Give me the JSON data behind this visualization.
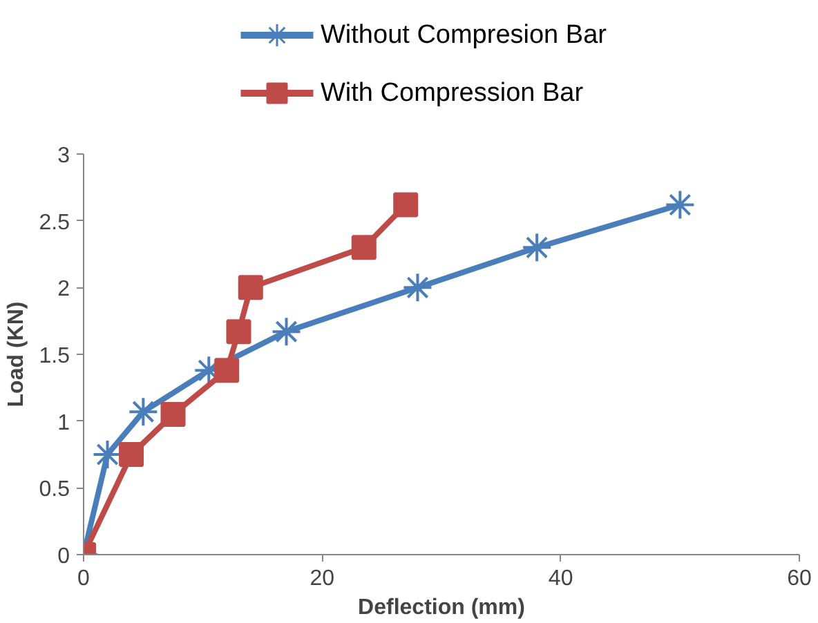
{
  "chart_data": {
    "type": "line",
    "xlabel": "Deflection (mm)",
    "ylabel": "Load (KN)",
    "xlim": [
      0,
      60
    ],
    "xticks": [
      0,
      20,
      40,
      60
    ],
    "ylim": [
      0,
      3
    ],
    "yticks": [
      0,
      0.5,
      1,
      1.5,
      2,
      2.5,
      3
    ],
    "grid": false,
    "legend": "top",
    "line_style": "solid",
    "series": [
      {
        "name": "Without Compresion Bar",
        "color": "#4a7ebb",
        "marker": "cross",
        "x": [
          0,
          2,
          5,
          10.5,
          17,
          28,
          38,
          50
        ],
        "values": [
          0,
          0.75,
          1.07,
          1.38,
          1.67,
          2.0,
          2.3,
          2.62
        ]
      },
      {
        "name": "With Compression Bar",
        "color": "#be4b48",
        "marker": "square",
        "x": [
          0,
          4,
          7.5,
          12,
          13,
          14,
          23.5,
          27
        ],
        "values": [
          0,
          0.75,
          1.05,
          1.38,
          1.67,
          2.0,
          2.3,
          2.62
        ]
      }
    ]
  }
}
